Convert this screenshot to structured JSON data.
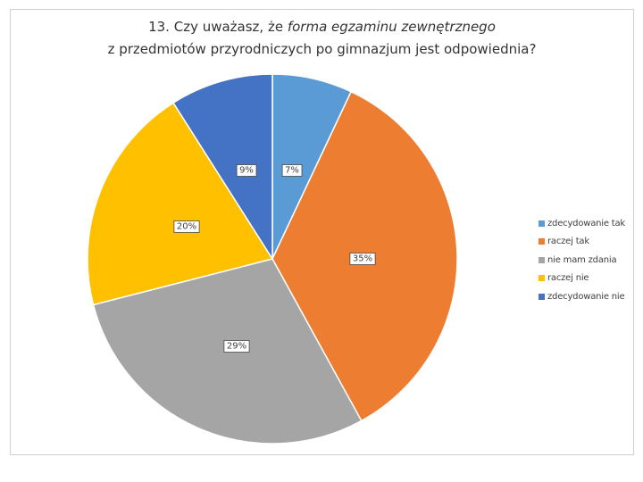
{
  "chart_data": {
    "type": "pie",
    "title_parts": [
      {
        "text": "13. Czy uważasz, że ",
        "italic": false
      },
      {
        "text": "forma egzaminu zewnętrznego",
        "italic": true
      }
    ],
    "title_line2": "z przedmiotów przyrodniczych po gimnazjum jest odpowiednia?",
    "slices": [
      {
        "label": "zdecydowanie tak",
        "value": 7,
        "data_label": "7%",
        "color": "#5B9BD5"
      },
      {
        "label": "raczej tak",
        "value": 35,
        "data_label": "35%",
        "color": "#ED7D31"
      },
      {
        "label": "nie mam zdania",
        "value": 29,
        "data_label": "29%",
        "color": "#A5A5A5"
      },
      {
        "label": "raczej nie",
        "value": 20,
        "data_label": "20%",
        "color": "#FFC000"
      },
      {
        "label": "zdecydowanie nie",
        "value": 9,
        "data_label": "9%",
        "color": "#4472C4"
      }
    ],
    "legend_position": "right",
    "start_angle_deg": 0,
    "direction": "clockwise"
  }
}
